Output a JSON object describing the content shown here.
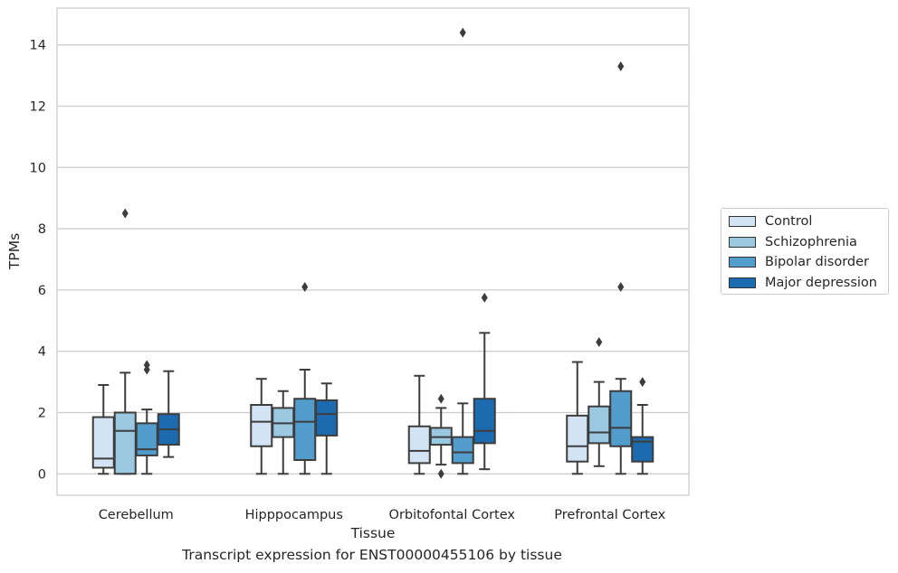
{
  "chart_data": {
    "type": "box",
    "title": "",
    "xlabel": "Tissue",
    "ylabel": "TPMs",
    "caption": "Transcript expression for ENST00000455106 by tissue",
    "ylim": [
      -0.7,
      15.2
    ],
    "yticks": [
      0,
      2,
      4,
      6,
      8,
      10,
      12,
      14
    ],
    "grid": "horizontal",
    "legend_position": "right",
    "categories": [
      "Cerebellum",
      "Hipppocampus",
      "Orbitofontal Cortex",
      "Prefrontal Cortex"
    ],
    "series": [
      {
        "name": "Control",
        "color": "#d2e3f3",
        "boxes": [
          {
            "whisker_low": 0.0,
            "q1": 0.2,
            "median": 0.5,
            "q3": 1.85,
            "whisker_high": 2.9,
            "outliers": []
          },
          {
            "whisker_low": 0.0,
            "q1": 0.9,
            "median": 1.7,
            "q3": 2.25,
            "whisker_high": 3.1,
            "outliers": []
          },
          {
            "whisker_low": 0.0,
            "q1": 0.35,
            "median": 0.75,
            "q3": 1.55,
            "whisker_high": 3.2,
            "outliers": []
          },
          {
            "whisker_low": 0.0,
            "q1": 0.4,
            "median": 0.9,
            "q3": 1.9,
            "whisker_high": 3.65,
            "outliers": []
          }
        ]
      },
      {
        "name": "Schizophrenia",
        "color": "#9ac8e0",
        "boxes": [
          {
            "whisker_low": 0.0,
            "q1": 0.0,
            "median": 1.4,
            "q3": 2.0,
            "whisker_high": 3.3,
            "outliers": [
              8.5
            ]
          },
          {
            "whisker_low": 0.0,
            "q1": 1.2,
            "median": 1.65,
            "q3": 2.15,
            "whisker_high": 2.7,
            "outliers": []
          },
          {
            "whisker_low": 0.3,
            "q1": 0.95,
            "median": 1.2,
            "q3": 1.5,
            "whisker_high": 2.15,
            "outliers": [
              2.45,
              0.0
            ]
          },
          {
            "whisker_low": 0.25,
            "q1": 1.0,
            "median": 1.35,
            "q3": 2.2,
            "whisker_high": 3.0,
            "outliers": [
              4.3
            ]
          }
        ]
      },
      {
        "name": "Bipolar disorder",
        "color": "#529dcc",
        "boxes": [
          {
            "whisker_low": 0.0,
            "q1": 0.6,
            "median": 0.8,
            "q3": 1.65,
            "whisker_high": 2.1,
            "outliers": [
              3.55,
              3.4
            ]
          },
          {
            "whisker_low": 0.0,
            "q1": 0.45,
            "median": 1.7,
            "q3": 2.45,
            "whisker_high": 3.4,
            "outliers": [
              6.1
            ]
          },
          {
            "whisker_low": 0.0,
            "q1": 0.35,
            "median": 0.7,
            "q3": 1.2,
            "whisker_high": 2.3,
            "outliers": [
              14.4
            ]
          },
          {
            "whisker_low": 0.0,
            "q1": 0.9,
            "median": 1.5,
            "q3": 2.7,
            "whisker_high": 3.1,
            "outliers": [
              6.1,
              13.3
            ]
          }
        ]
      },
      {
        "name": "Major depression",
        "color": "#1c6aaf",
        "boxes": [
          {
            "whisker_low": 0.55,
            "q1": 0.95,
            "median": 1.45,
            "q3": 1.95,
            "whisker_high": 3.35,
            "outliers": []
          },
          {
            "whisker_low": 0.0,
            "q1": 1.25,
            "median": 1.95,
            "q3": 2.4,
            "whisker_high": 2.95,
            "outliers": []
          },
          {
            "whisker_low": 0.15,
            "q1": 1.0,
            "median": 1.4,
            "q3": 2.45,
            "whisker_high": 4.6,
            "outliers": [
              5.75
            ]
          },
          {
            "whisker_low": 0.0,
            "q1": 0.4,
            "median": 1.05,
            "q3": 1.2,
            "whisker_high": 2.25,
            "outliers": [
              3.0
            ]
          }
        ]
      }
    ]
  }
}
